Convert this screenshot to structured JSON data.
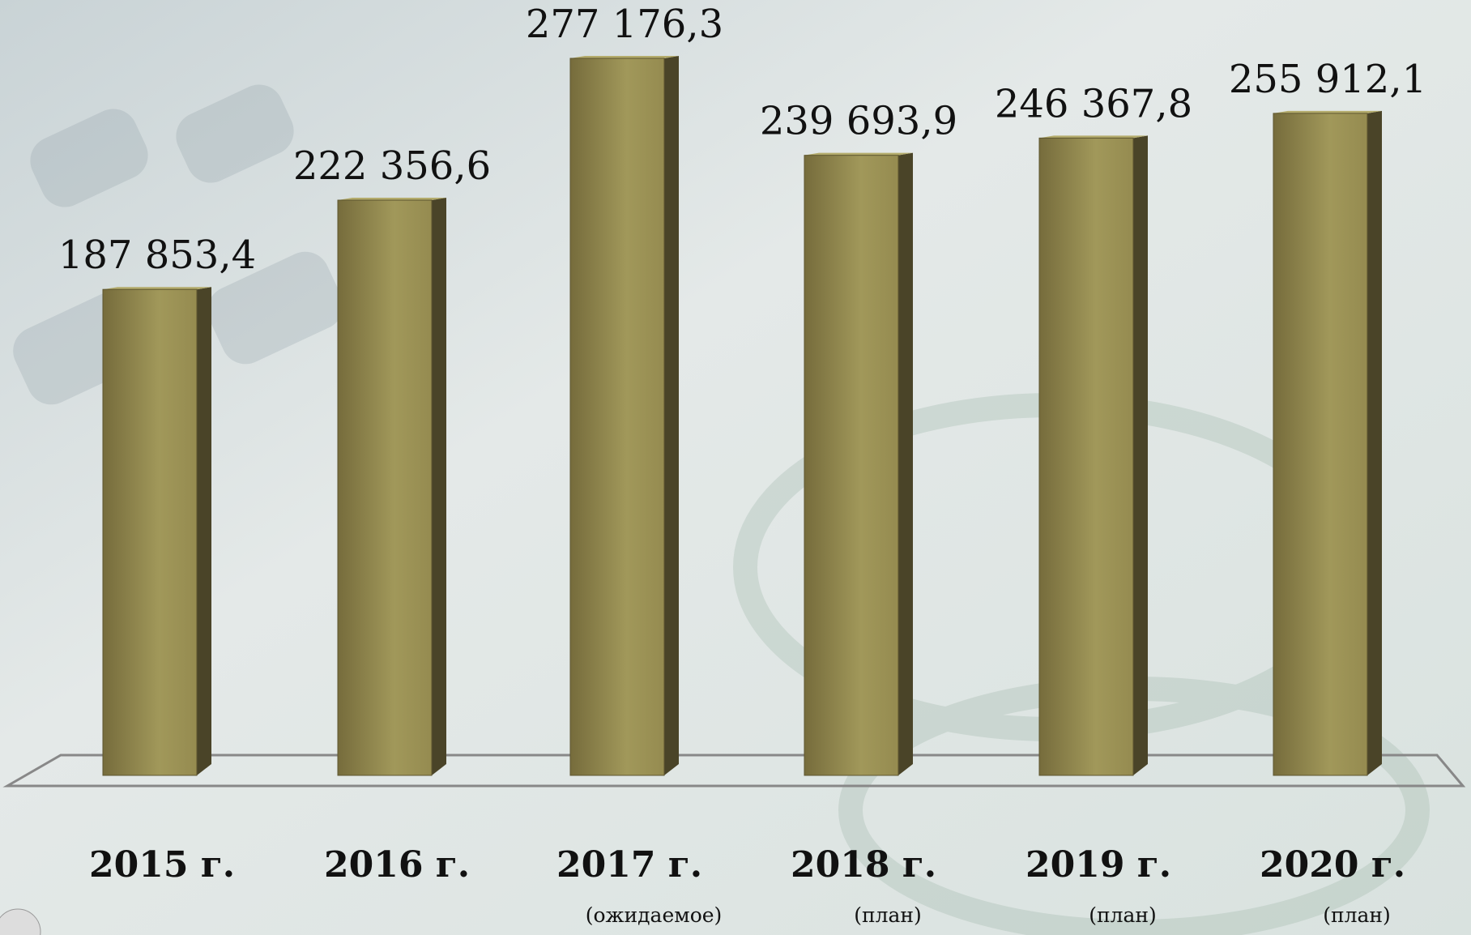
{
  "chart_data": {
    "type": "bar3d",
    "categories": [
      "2015 г.",
      "2016 г.",
      "2017 г.",
      "2018 г.",
      "2019 г.",
      "2020 г."
    ],
    "category_notes": [
      null,
      null,
      "(ожидаемое)",
      "(план)",
      "(план)",
      "(план)"
    ],
    "values": [
      187853.4,
      222356.6,
      277176.3,
      239693.9,
      246367.8,
      255912.1
    ],
    "value_labels": [
      "187 853,4",
      "222 356,6",
      "277 176,3",
      "239 693,9",
      "246 367,8",
      "255 912,1"
    ],
    "color": "#8f8650"
  }
}
